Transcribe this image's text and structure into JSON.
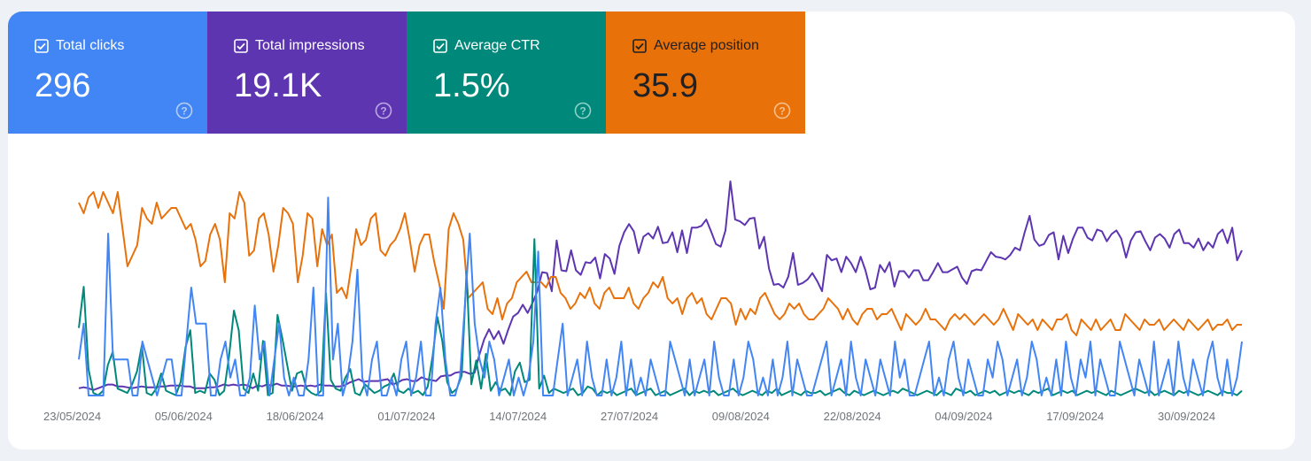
{
  "tiles": [
    {
      "key": "clicks",
      "label": "Total clicks",
      "value": "296",
      "bg": "#4285f4",
      "text": "#ffffff",
      "help": "#b6cffa"
    },
    {
      "key": "impressions",
      "label": "Total impressions",
      "value": "19.1K",
      "bg": "#5e35b1",
      "text": "#ffffff",
      "help": "#bba9e3"
    },
    {
      "key": "ctr",
      "label": "Average CTR",
      "value": "1.5%",
      "bg": "#00897b",
      "text": "#ffffff",
      "help": "#8fd0c8"
    },
    {
      "key": "position",
      "label": "Average position",
      "value": "35.9",
      "bg": "#e8710a",
      "text": "#202124",
      "help": "#f8c08c"
    }
  ],
  "chart_data": {
    "type": "line",
    "x_tick_labels": [
      "23/05/2024",
      "05/06/2024",
      "18/06/2024",
      "01/07/2024",
      "14/07/2024",
      "27/07/2024",
      "09/08/2024",
      "22/08/2024",
      "04/09/2024",
      "17/09/2024",
      "30/09/2024"
    ],
    "series": [
      {
        "name": "Total impressions",
        "color": "#5e35b1",
        "values": [
          10,
          11,
          10,
          8,
          10,
          12,
          14,
          14,
          12,
          12,
          11,
          10,
          11,
          12,
          11,
          11,
          11,
          12,
          12,
          13,
          13,
          13,
          12,
          12,
          10,
          10,
          10,
          11,
          11,
          12,
          14,
          13,
          14,
          13,
          14,
          13,
          10,
          13,
          12,
          14,
          13,
          15,
          13,
          13,
          12,
          12,
          13,
          12,
          13,
          12,
          14,
          13,
          13,
          12,
          12,
          13,
          16,
          18,
          20,
          17,
          18,
          18,
          18,
          19,
          20,
          14,
          16,
          19,
          20,
          18,
          18,
          22,
          20,
          19,
          18,
          23,
          24,
          24,
          27,
          28,
          28,
          26,
          27,
          47,
          64,
          75,
          64,
          73,
          59,
          75,
          89,
          93,
          102,
          93,
          104,
          117,
          138,
          137,
          117,
          173,
          140,
          139,
          162,
          140,
          135,
          149,
          148,
          154,
          131,
          158,
          153,
          136,
          167,
          182,
          191,
          183,
          159,
          177,
          181,
          175,
          188,
          170,
          171,
          182,
          160,
          184,
          159,
          187,
          187,
          189,
          196,
          183,
          169,
          166,
          184,
          238,
          196,
          194,
          190,
          197,
          198,
          164,
          177,
          142,
          124,
          125,
          121,
          133,
          159,
          124,
          126,
          130,
          137,
          128,
          117,
          157,
          151,
          153,
          138,
          155,
          148,
          138,
          155,
          140,
          119,
          121,
          146,
          138,
          149,
          122,
          139,
          139,
          132,
          140,
          140,
          129,
          129,
          138,
          148,
          138,
          138,
          141,
          144,
          132,
          125,
          139,
          141,
          140,
          150,
          160,
          155,
          154,
          152,
          157,
          165,
          162,
          182,
          200,
          174,
          167,
          169,
          179,
          182,
          152,
          178,
          159,
          175,
          187,
          187,
          176,
          173,
          185,
          183,
          172,
          180,
          184,
          175,
          154,
          173,
          182,
          183,
          172,
          162,
          176,
          180,
          175,
          165,
          180,
          185,
          170,
          170,
          165,
          175,
          162,
          171,
          165,
          180,
          185,
          170,
          187,
          151,
          162
        ]
      },
      {
        "name": "Average position",
        "color": "#e8710a",
        "values": [
          40,
          42,
          39,
          38,
          41,
          38,
          40,
          42,
          38,
          45,
          52,
          50,
          48,
          41,
          43,
          44,
          40,
          43,
          42,
          41,
          41,
          43,
          45,
          44,
          47,
          52,
          51,
          46,
          44,
          47,
          55,
          42,
          43,
          38,
          40,
          50,
          49,
          43,
          42,
          46,
          53,
          48,
          41,
          42,
          44,
          55,
          50,
          42,
          43,
          52,
          45,
          48,
          46,
          57,
          56,
          58,
          52,
          45,
          48,
          47,
          43,
          42,
          49,
          50,
          48,
          47,
          45,
          42,
          47,
          53,
          48,
          46,
          46,
          51,
          55,
          60,
          45,
          42,
          44,
          47,
          58,
          57,
          56,
          55,
          60,
          61,
          58,
          62,
          59,
          58,
          55,
          54,
          53,
          55,
          55,
          55,
          56,
          54,
          54,
          57,
          58,
          60,
          59,
          57,
          58,
          56,
          59,
          60,
          57,
          56,
          58,
          58,
          58,
          56,
          59,
          60,
          58,
          57,
          55,
          56,
          54,
          58,
          59,
          58,
          61,
          58,
          57,
          59,
          58,
          61,
          62,
          60,
          58,
          58,
          59,
          63,
          60,
          62,
          60,
          61,
          58,
          57,
          59,
          61,
          62,
          61,
          59,
          60,
          59,
          61,
          62,
          62,
          61,
          60,
          58,
          59,
          60,
          62,
          60,
          62,
          63,
          61,
          60,
          60,
          62,
          61,
          61,
          60,
          62,
          64,
          61,
          62,
          63,
          62,
          60,
          62,
          62,
          63,
          64,
          62,
          61,
          62,
          61,
          62,
          63,
          62,
          61,
          62,
          63,
          62,
          60,
          62,
          64,
          61,
          62,
          63,
          62,
          64,
          62,
          63,
          64,
          62,
          62,
          61,
          64,
          65,
          62,
          63,
          64,
          62,
          64,
          63,
          62,
          64,
          64,
          61,
          62,
          63,
          64,
          62,
          63,
          63,
          62,
          64,
          63,
          62,
          63,
          64,
          62,
          63,
          64,
          63,
          62,
          64,
          63,
          63,
          62,
          64,
          63,
          63
        ]
      },
      {
        "name": "Average CTR",
        "color": "#00897b",
        "values": [
          3.2,
          5.1,
          1.3,
          0.2,
          0.1,
          0.3,
          1.5,
          2.1,
          0.4,
          0.3,
          0.2,
          0.6,
          1.2,
          2.4,
          0.2,
          0.1,
          0.4,
          1.1,
          0.3,
          0.2,
          0.1,
          0.7,
          2.3,
          3.1,
          0.2,
          0.3,
          0.2,
          1.1,
          0.8,
          0.1,
          0.3,
          1.9,
          4.0,
          3.1,
          0.4,
          0.2,
          1.1,
          0.3,
          2.6,
          0.1,
          0.2,
          3.8,
          2.7,
          1.5,
          0.3,
          1.1,
          1.2,
          0.4,
          0.2,
          0.1,
          0.3,
          4.8,
          0.8,
          0.4,
          0.3,
          0.9,
          1.3,
          0.2,
          0.1,
          0.6,
          0.4,
          0.2,
          0.3,
          0.5,
          0.6,
          1.1,
          0.3,
          0.2,
          0.4,
          0.2,
          0.3,
          0.1,
          0.5,
          1.9,
          3.7,
          2.6,
          0.7,
          0.2,
          0.4,
          1.0,
          5.8,
          0.6,
          1.7,
          0.4,
          2.0,
          0.3,
          0.7,
          0.3,
          0.4,
          0.1,
          1.2,
          1.6,
          0.7,
          0.8,
          7.3,
          0.4,
          1.0,
          0.2,
          0.4,
          0.3,
          0.2,
          0.3,
          0.4,
          0.1,
          0.2,
          0.5,
          0.4,
          0.1,
          0.3,
          0.2,
          0.3,
          0.1,
          0.2,
          0.3,
          0.4,
          0.1,
          0.2,
          0.3,
          0.4,
          0.1,
          0.2,
          0.3,
          0.1,
          0.2,
          0.3,
          0.4,
          0.1,
          0.3,
          0.2,
          0.3,
          0.2,
          0.3,
          0.1,
          0.2,
          0.3,
          0.4,
          0.2,
          0.1,
          0.2,
          0.3,
          0.2,
          0.1,
          0.3,
          0.2,
          0.4,
          0.1,
          0.2,
          0.3,
          0.2,
          0.1,
          0.3,
          0.2,
          0.2,
          0.3,
          0.1,
          0.2,
          0.3,
          0.4,
          0.2,
          0.1,
          0.3,
          0.2,
          0.1,
          0.2,
          0.3,
          0.2,
          0.1,
          0.2,
          0.3,
          0.2,
          0.4,
          0.3,
          0.2,
          0.1,
          0.2,
          0.3,
          0.2,
          0.1,
          0.3,
          0.2,
          0.1,
          0.4,
          0.3,
          0.2,
          0.3,
          0.1,
          0.2,
          0.3,
          0.2,
          0.3,
          0.1,
          0.2,
          0.3,
          0.2,
          0.3,
          0.2,
          0.1,
          0.3,
          0.2,
          0.3,
          0.4,
          0.1,
          0.2,
          0.3,
          0.2,
          0.3,
          0.1,
          0.2,
          0.3,
          0.2,
          0.3,
          0.2,
          0.1,
          0.3,
          0.2,
          0.1,
          0.2,
          0.3,
          0.4,
          0.3,
          0.2,
          0.3,
          0.1,
          0.2,
          0.3,
          0.2,
          0.1,
          0.3,
          0.2,
          0.3,
          0.2,
          0.1,
          0.2,
          0.3,
          0.2,
          0.1,
          0.3,
          0.2,
          0.2,
          0.1,
          0.3
        ]
      },
      {
        "name": "Total clicks",
        "color": "#4285f4",
        "values": [
          2,
          4,
          0,
          0,
          0,
          0,
          9,
          2,
          2,
          2,
          2,
          0,
          0,
          3,
          2,
          1,
          0,
          1,
          2,
          2,
          0,
          0,
          3,
          6,
          4,
          4,
          4,
          0,
          0,
          2,
          3,
          1,
          2,
          0,
          0,
          1,
          5,
          2,
          3,
          0,
          2,
          4,
          1,
          0,
          1,
          0,
          0,
          2,
          6,
          0,
          0,
          11,
          2,
          4,
          0,
          1,
          3,
          7,
          1,
          0,
          2,
          3,
          0,
          0,
          1,
          0,
          2,
          3,
          0,
          1,
          3,
          0,
          0,
          4,
          6,
          2,
          0,
          0,
          1,
          5,
          9,
          4,
          2,
          1,
          3,
          2,
          0,
          1,
          2,
          0,
          1,
          0,
          1,
          3,
          8,
          0,
          0,
          0,
          2,
          4,
          0,
          1,
          2,
          0,
          3,
          1,
          0,
          0,
          2,
          0,
          1,
          3,
          0,
          2,
          0,
          1,
          0,
          2,
          1,
          0,
          0,
          3,
          2,
          1,
          0,
          2,
          0,
          1,
          2,
          0,
          3,
          1,
          0,
          0,
          2,
          0,
          1,
          3,
          2,
          0,
          1,
          0,
          2,
          0,
          1,
          3,
          0,
          2,
          1,
          0,
          0,
          1,
          2,
          3,
          0,
          1,
          2,
          0,
          3,
          1,
          0,
          2,
          1,
          0,
          2,
          1,
          0,
          3,
          1,
          2,
          0,
          0,
          1,
          2,
          3,
          0,
          1,
          0,
          2,
          3,
          1,
          0,
          2,
          1,
          0,
          0,
          2,
          1,
          3,
          2,
          0,
          1,
          2,
          0,
          1,
          3,
          2,
          0,
          1,
          0,
          2,
          0,
          3,
          1,
          0,
          2,
          1,
          3,
          0,
          2,
          1,
          0,
          0,
          3,
          2,
          1,
          0,
          2,
          1,
          0,
          3,
          0,
          1,
          2,
          0,
          3,
          1,
          0,
          2,
          1,
          0,
          2,
          3,
          1,
          0,
          2,
          0,
          1,
          3
        ]
      }
    ]
  }
}
